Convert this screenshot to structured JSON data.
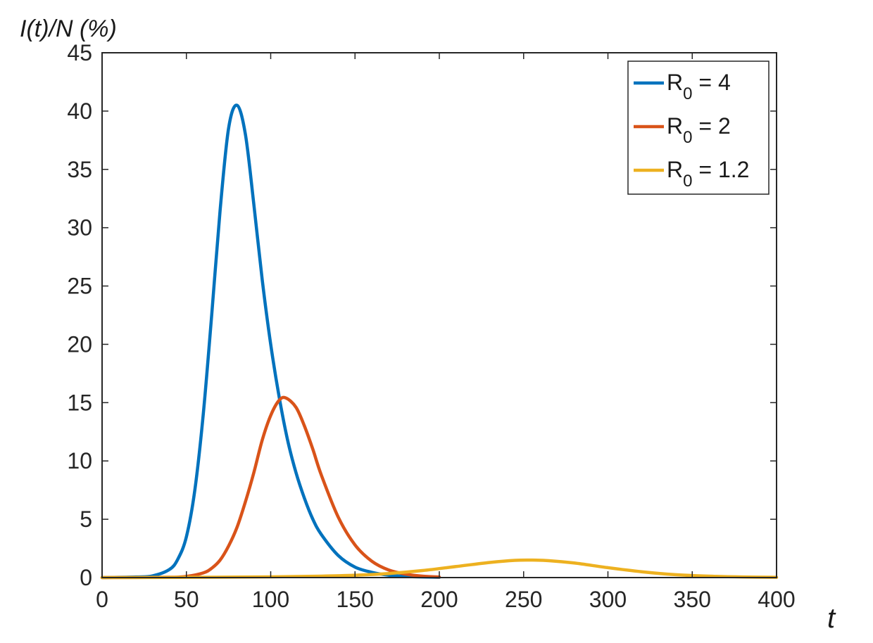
{
  "chart_data": {
    "type": "line",
    "ylabel": "I(t)/N (%)",
    "xlabel": "t",
    "xlim": [
      0,
      400
    ],
    "ylim": [
      0,
      45
    ],
    "xticks": [
      0,
      50,
      100,
      150,
      200,
      250,
      300,
      350,
      400
    ],
    "yticks": [
      0,
      5,
      10,
      15,
      20,
      25,
      30,
      35,
      40,
      45
    ],
    "grid": false,
    "legend_position": "top-right",
    "series": [
      {
        "name": "R0 = 4",
        "legend": {
          "base": "R",
          "sub": "0",
          "rest": " = 4"
        },
        "color": "#0072BD",
        "x": [
          0,
          20,
          30,
          40,
          45,
          50,
          55,
          60,
          65,
          70,
          75,
          80,
          85,
          90,
          95,
          100,
          105,
          110,
          115,
          120,
          125,
          130,
          140,
          150,
          160,
          170,
          180,
          200
        ],
        "y": [
          0,
          0.05,
          0.15,
          0.7,
          1.6,
          3.5,
          7.5,
          14.0,
          22.5,
          31.5,
          38.5,
          40.5,
          38.0,
          32.0,
          25.5,
          20.0,
          15.5,
          11.8,
          9.0,
          6.8,
          5.0,
          3.7,
          1.9,
          0.9,
          0.45,
          0.2,
          0.1,
          0.02
        ]
      },
      {
        "name": "R0 = 2",
        "legend": {
          "base": "R",
          "sub": "0",
          "rest": " = 2"
        },
        "color": "#D95319",
        "x": [
          0,
          40,
          50,
          60,
          65,
          70,
          75,
          80,
          85,
          90,
          95,
          100,
          105,
          109,
          115,
          120,
          125,
          130,
          140,
          150,
          160,
          170,
          180,
          190,
          200
        ],
        "y": [
          0,
          0.03,
          0.1,
          0.4,
          0.8,
          1.5,
          2.7,
          4.3,
          6.5,
          9.0,
          11.8,
          13.9,
          15.2,
          15.4,
          14.6,
          13.0,
          11.0,
          8.8,
          5.2,
          2.8,
          1.4,
          0.65,
          0.3,
          0.12,
          0.05
        ]
      },
      {
        "name": "R0 = 1.2",
        "legend": {
          "base": "R",
          "sub": "0",
          "rest": " = 1.2"
        },
        "color": "#EDB120",
        "x": [
          0,
          50,
          100,
          130,
          150,
          170,
          190,
          210,
          230,
          245,
          255,
          265,
          280,
          300,
          320,
          340,
          360,
          380,
          400
        ],
        "y": [
          0,
          0.02,
          0.06,
          0.12,
          0.2,
          0.35,
          0.6,
          0.95,
          1.3,
          1.48,
          1.5,
          1.45,
          1.25,
          0.85,
          0.5,
          0.25,
          0.12,
          0.05,
          0.02
        ]
      }
    ]
  }
}
